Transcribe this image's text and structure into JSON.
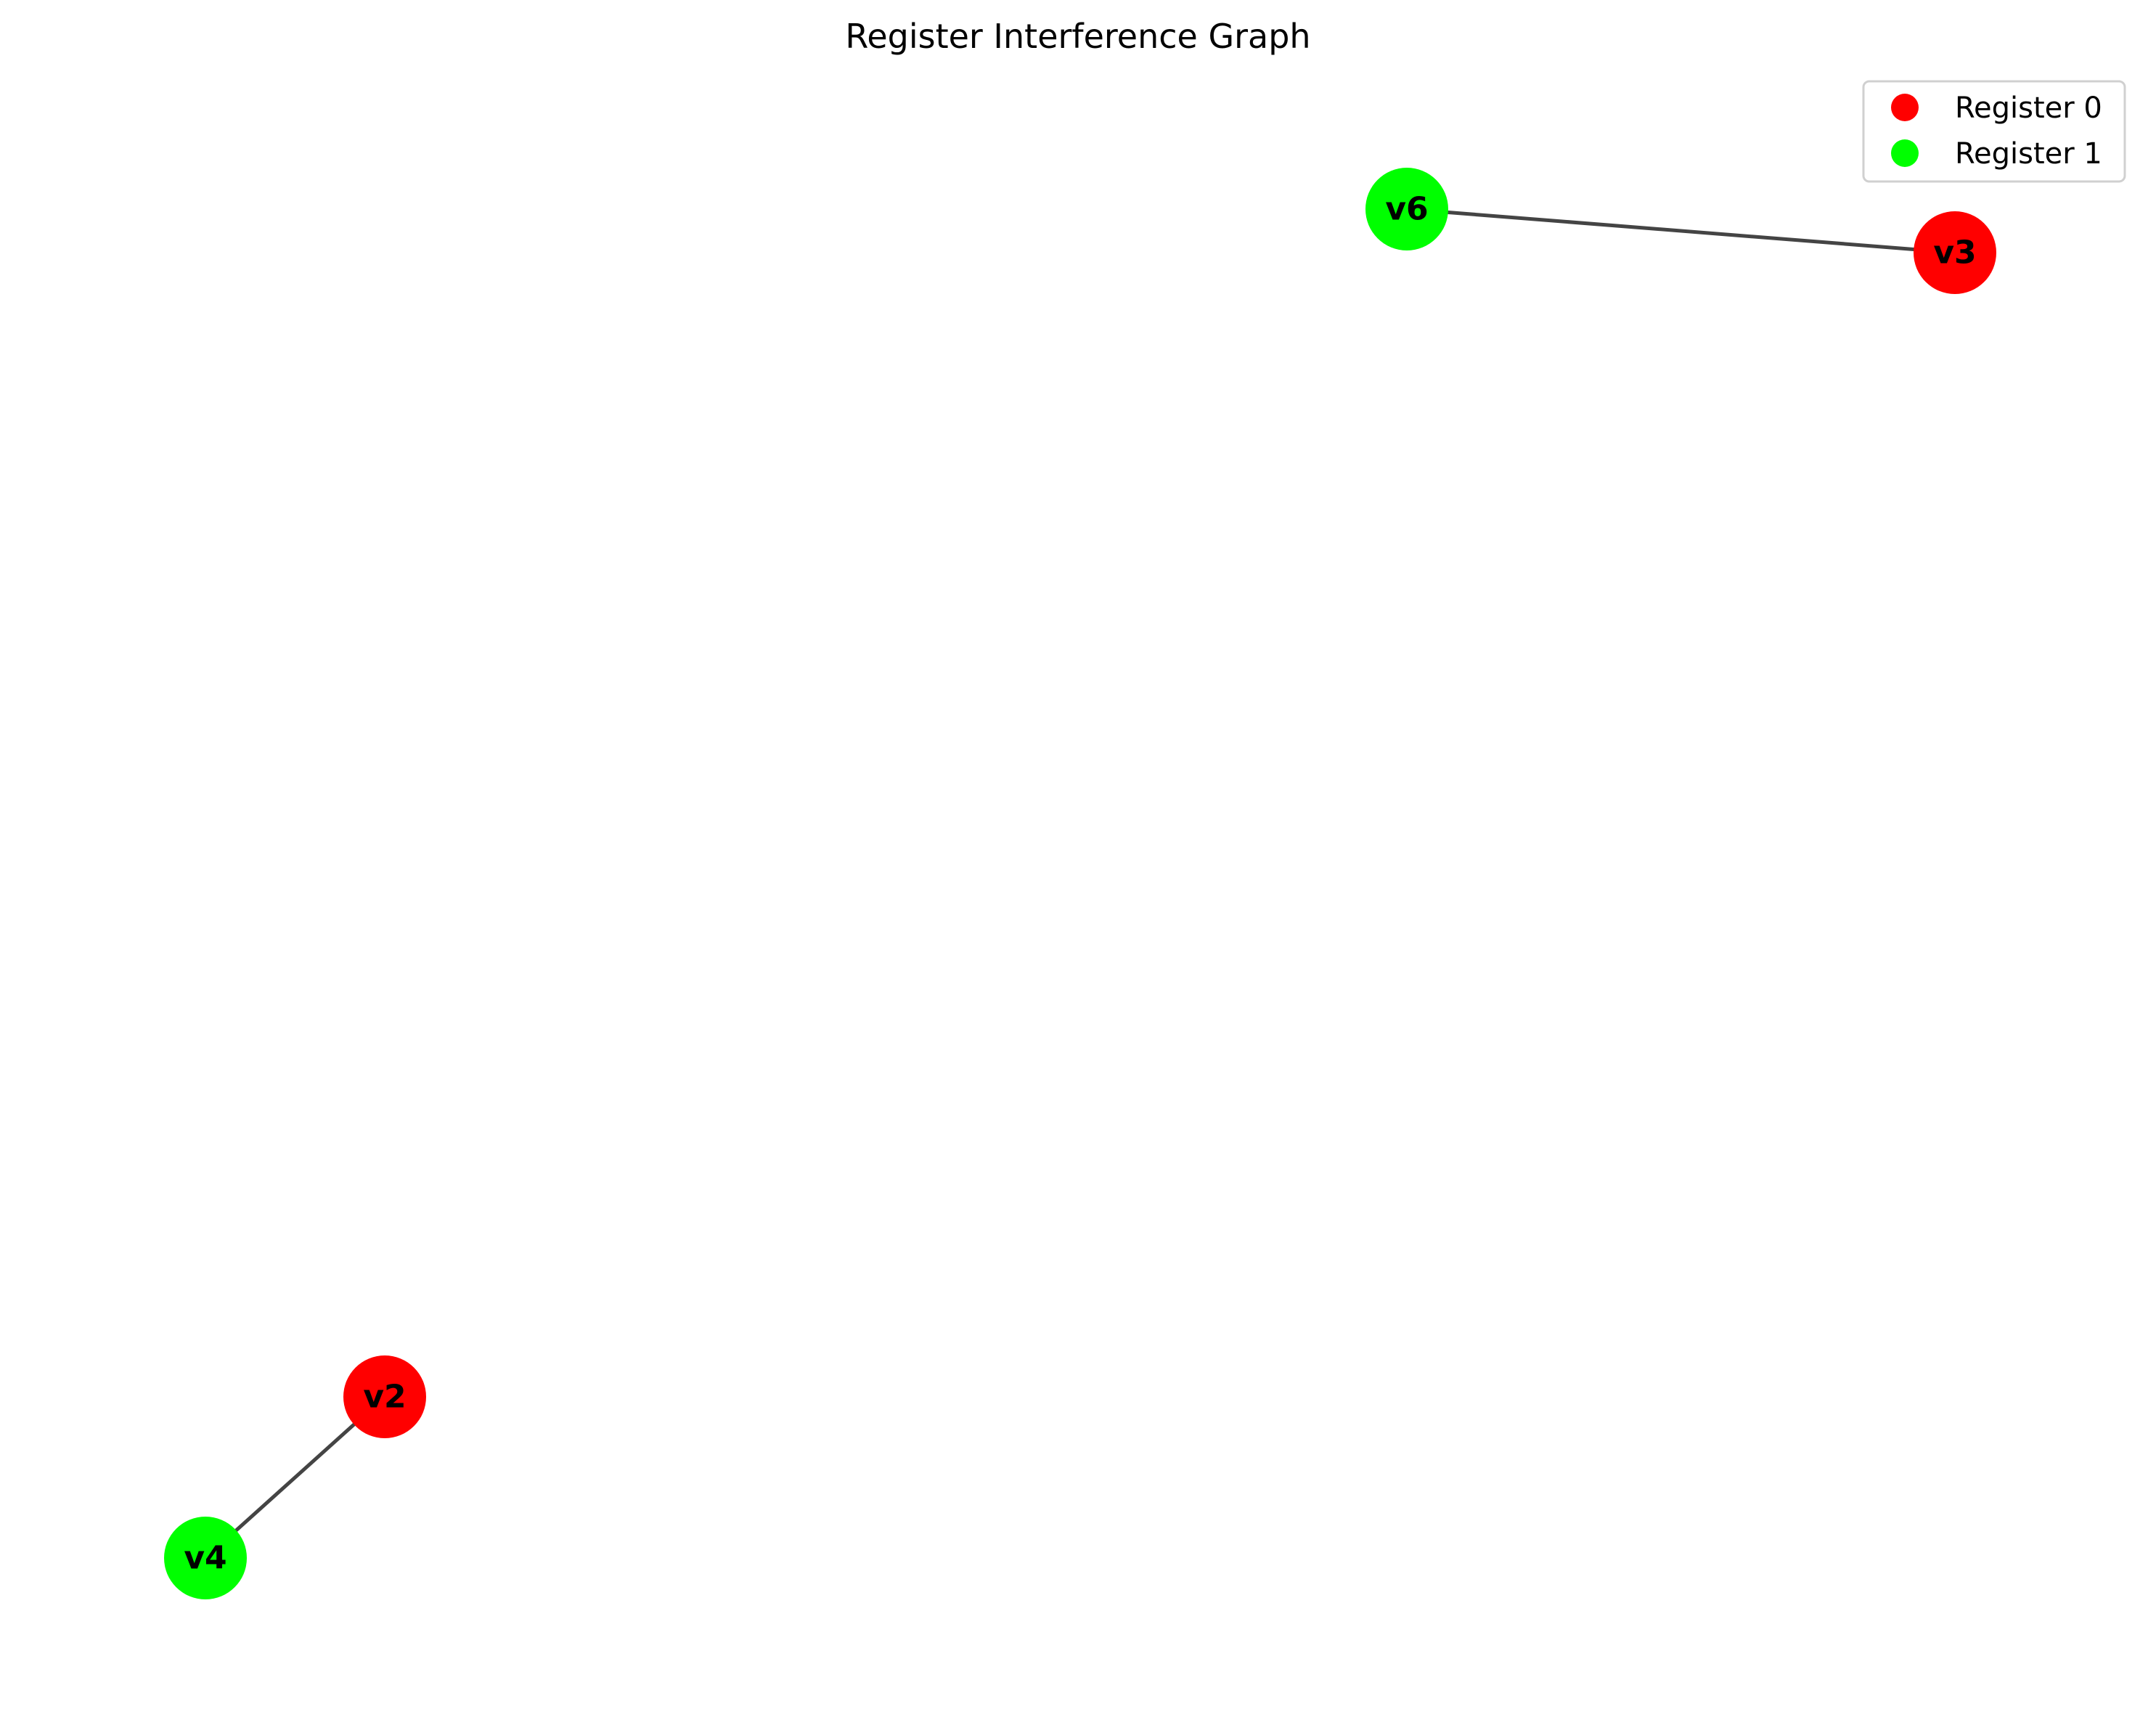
{
  "title": "Register Interference Graph",
  "registers": [
    {
      "id": "r0",
      "label": "Register 0",
      "color": "#ff0000"
    },
    {
      "id": "r1",
      "label": "Register 1",
      "color": "#00ff00"
    }
  ],
  "nodes": [
    {
      "id": "v6",
      "label": "v6",
      "register": "r1"
    },
    {
      "id": "v3",
      "label": "v3",
      "register": "r0"
    },
    {
      "id": "v2",
      "label": "v2",
      "register": "r0"
    },
    {
      "id": "v4",
      "label": "v4",
      "register": "r1"
    }
  ],
  "edges": [
    {
      "source": "v6",
      "target": "v3"
    },
    {
      "source": "v2",
      "target": "v4"
    }
  ]
}
